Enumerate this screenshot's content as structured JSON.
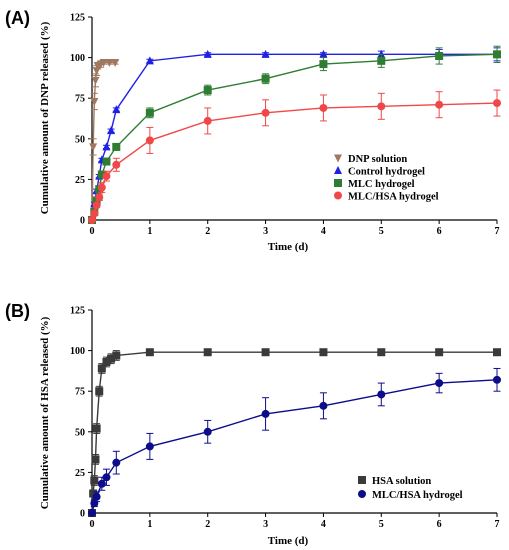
{
  "chart_data": [
    {
      "panel": "(A)",
      "type": "line",
      "xlabel": "Time (d)",
      "ylabel": "Cumulative amount of DNP released (%)",
      "xlim": [
        0,
        7
      ],
      "ylim": [
        0,
        125
      ],
      "xticks": [
        0,
        1,
        2,
        3,
        4,
        5,
        6,
        7
      ],
      "yticks": [
        0,
        25,
        50,
        75,
        100,
        125
      ],
      "legend_position": "right",
      "series": [
        {
          "name": "DNP solution",
          "color": "#a07860",
          "marker": "triangle-down",
          "x": [
            0,
            0.02,
            0.04,
            0.06,
            0.08,
            0.1,
            0.15,
            0.2,
            0.3,
            0.4
          ],
          "y": [
            0,
            45,
            73,
            86,
            92,
            95,
            96,
            97,
            97,
            97
          ],
          "err": [
            0,
            5,
            5,
            4,
            3,
            2,
            2,
            1,
            1,
            1
          ]
        },
        {
          "name": "Control hydrogel",
          "color": "#1f1fe6",
          "marker": "triangle-up",
          "x": [
            0,
            0.04,
            0.08,
            0.125,
            0.17,
            0.25,
            0.33,
            0.42,
            1,
            2,
            3,
            4,
            5,
            6,
            7
          ],
          "y": [
            0,
            10,
            18,
            27,
            37,
            45,
            55,
            68,
            98,
            102,
            102,
            102,
            102,
            102,
            102
          ],
          "err": [
            0,
            1,
            1,
            1,
            1,
            1,
            1,
            1,
            1,
            1,
            1,
            1,
            2,
            3,
            4
          ]
        },
        {
          "name": "MLC hydrogel",
          "color": "#2e7d32",
          "marker": "square",
          "x": [
            0,
            0.04,
            0.08,
            0.125,
            0.17,
            0.25,
            0.42,
            1,
            2,
            3,
            4,
            5,
            6,
            7
          ],
          "y": [
            0,
            5,
            12,
            19,
            28,
            36,
            45,
            66,
            80,
            87,
            96,
            98,
            101,
            102
          ],
          "err": [
            0,
            1,
            1,
            1,
            1,
            2,
            2,
            3,
            3,
            3,
            4,
            4,
            5,
            5
          ]
        },
        {
          "name": "MLC/HSA hydrogel",
          "color": "#f04848",
          "marker": "circle",
          "x": [
            0,
            0.04,
            0.08,
            0.125,
            0.17,
            0.25,
            0.42,
            1,
            2,
            3,
            4,
            5,
            6,
            7
          ],
          "y": [
            0,
            4,
            9,
            14,
            20,
            27,
            34,
            49,
            61,
            66,
            69,
            70,
            71,
            72
          ],
          "err": [
            0,
            1,
            1,
            2,
            3,
            3,
            4,
            8,
            8,
            8,
            8,
            8,
            8,
            8
          ]
        }
      ]
    },
    {
      "panel": "(B)",
      "type": "line",
      "xlabel": "Time (d)",
      "ylabel": "Cumulative amount of HSA released (%)",
      "xlim": [
        0,
        7
      ],
      "ylim": [
        0,
        125
      ],
      "xticks": [
        0,
        1,
        2,
        3,
        4,
        5,
        6,
        7
      ],
      "yticks": [
        0,
        25,
        50,
        75,
        100,
        125
      ],
      "legend_position": "bottom-right",
      "series": [
        {
          "name": "HSA solution",
          "color": "#3a3a3a",
          "marker": "square",
          "x": [
            0,
            0.02,
            0.04,
            0.06,
            0.08,
            0.125,
            0.17,
            0.25,
            0.33,
            0.42,
            1,
            2,
            3,
            4,
            5,
            6,
            7
          ],
          "y": [
            0,
            12,
            20,
            33,
            52,
            75,
            89,
            93,
            95,
            97,
            99,
            99,
            99,
            99,
            99,
            99,
            99
          ],
          "err": [
            0,
            2,
            3,
            3,
            3,
            3,
            3,
            3,
            3,
            3,
            1,
            1,
            1,
            1,
            1,
            1,
            1
          ]
        },
        {
          "name": "MLC/HSA hydrogel",
          "color": "#0d0d8c",
          "marker": "circle",
          "x": [
            0,
            0.04,
            0.08,
            0.17,
            0.25,
            0.42,
            1,
            2,
            3,
            4,
            5,
            6,
            7
          ],
          "y": [
            0,
            6,
            10,
            18,
            22,
            31,
            41,
            50,
            61,
            66,
            73,
            80,
            82
          ],
          "err": [
            0,
            2,
            3,
            4,
            5,
            7,
            8,
            7,
            10,
            8,
            7,
            6,
            7
          ]
        }
      ]
    }
  ]
}
